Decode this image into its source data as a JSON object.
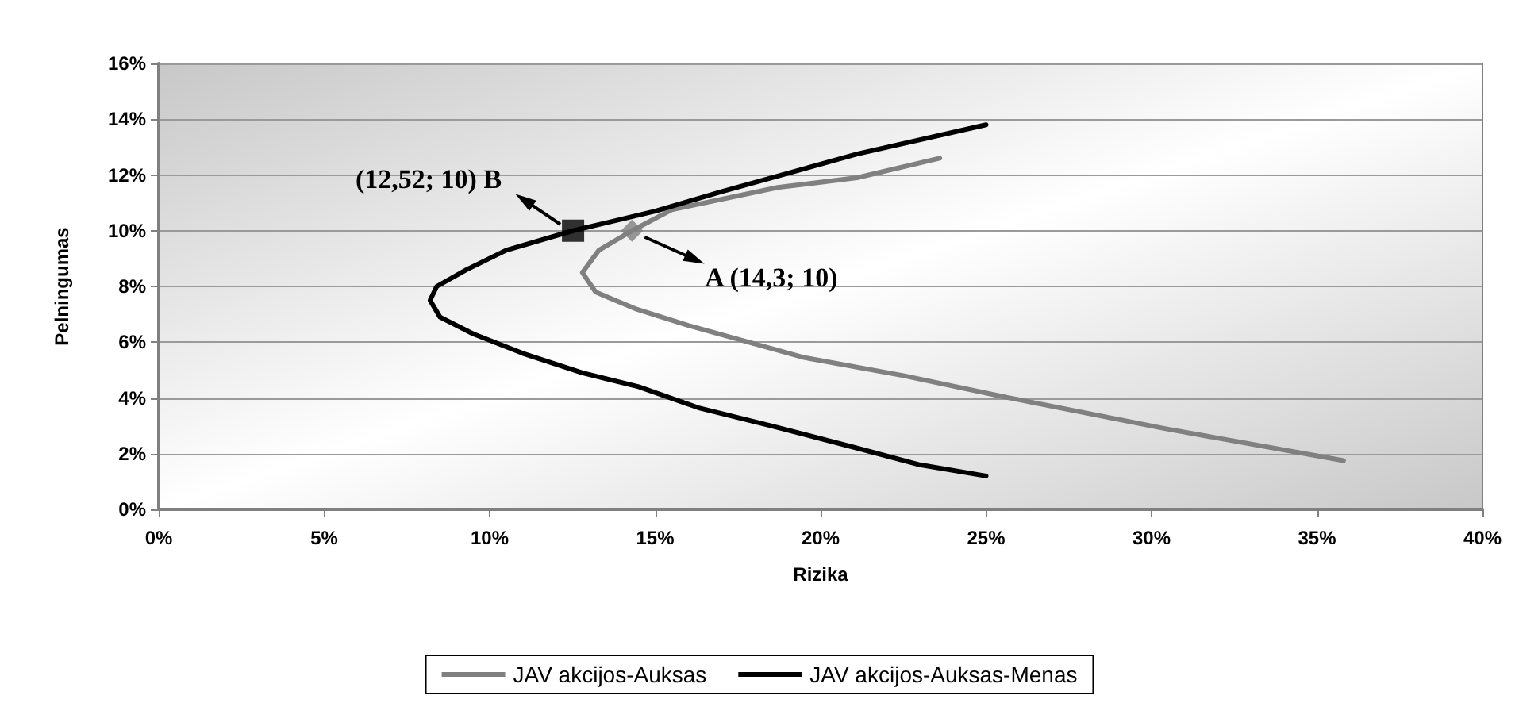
{
  "chart_data": {
    "type": "line",
    "xlabel": "Rizika",
    "ylabel": "Pelningumas",
    "xlim": [
      0,
      40
    ],
    "ylim": [
      0,
      16
    ],
    "xticks": [
      {
        "value": 0,
        "label": "0%"
      },
      {
        "value": 5,
        "label": "5%"
      },
      {
        "value": 10,
        "label": "10%"
      },
      {
        "value": 15,
        "label": "15%"
      },
      {
        "value": 20,
        "label": "20%"
      },
      {
        "value": 25,
        "label": "25%"
      },
      {
        "value": 30,
        "label": "30%"
      },
      {
        "value": 35,
        "label": "35%"
      },
      {
        "value": 40,
        "label": "40%"
      }
    ],
    "yticks": [
      {
        "value": 0,
        "label": "0%"
      },
      {
        "value": 2,
        "label": "2%"
      },
      {
        "value": 4,
        "label": "4%"
      },
      {
        "value": 6,
        "label": "6%"
      },
      {
        "value": 8,
        "label": "8%"
      },
      {
        "value": 10,
        "label": "10%"
      },
      {
        "value": 12,
        "label": "12%"
      },
      {
        "value": 14,
        "label": "14%"
      },
      {
        "value": 16,
        "label": "16%"
      }
    ],
    "grid": "y",
    "legend": "bottom",
    "marker": "none",
    "line_style": "solid",
    "series": [
      {
        "name": "JAV akcijos-Auksas",
        "color": "#808080",
        "x": [
          23.6,
          21.1,
          18.7,
          15.5,
          14.3,
          13.3,
          12.8,
          13.2,
          14.4,
          16,
          19.5,
          22.5,
          25.5,
          30.4,
          35.8
        ],
        "values": [
          12.6,
          11.9,
          11.55,
          10.75,
          10,
          9.3,
          8.5,
          7.8,
          7.2,
          6.6,
          5.45,
          4.8,
          4.05,
          2.9,
          1.75
        ]
      },
      {
        "name": "JAV akcijos-Auksas-Menas",
        "color": "#000000",
        "x": [
          25,
          21.1,
          17,
          15,
          12.52,
          10.5,
          9.3,
          8.4,
          8.2,
          8.5,
          9.5,
          11,
          12.8,
          14.5,
          16.3,
          18.5,
          21.1,
          23,
          25
        ],
        "values": [
          13.8,
          12.75,
          11.4,
          10.7,
          10,
          9.3,
          8.6,
          8,
          7.5,
          6.9,
          6.3,
          5.6,
          4.9,
          4.4,
          3.65,
          3,
          2.2,
          1.6,
          1.2
        ]
      },
      {
        "type": "scatter",
        "marker": "diamond",
        "color": "#808080",
        "x": [
          14.3
        ],
        "values": [
          10
        ]
      },
      {
        "type": "scatter",
        "marker": "square",
        "color": "#000000",
        "x": [
          12.52
        ],
        "values": [
          10
        ]
      }
    ],
    "annotations": [
      {
        "text": "(12,52; 10) B",
        "x": 12.52,
        "y": 10
      },
      {
        "text": "A (14,3; 10)",
        "x": 14.3,
        "y": 10
      }
    ]
  }
}
